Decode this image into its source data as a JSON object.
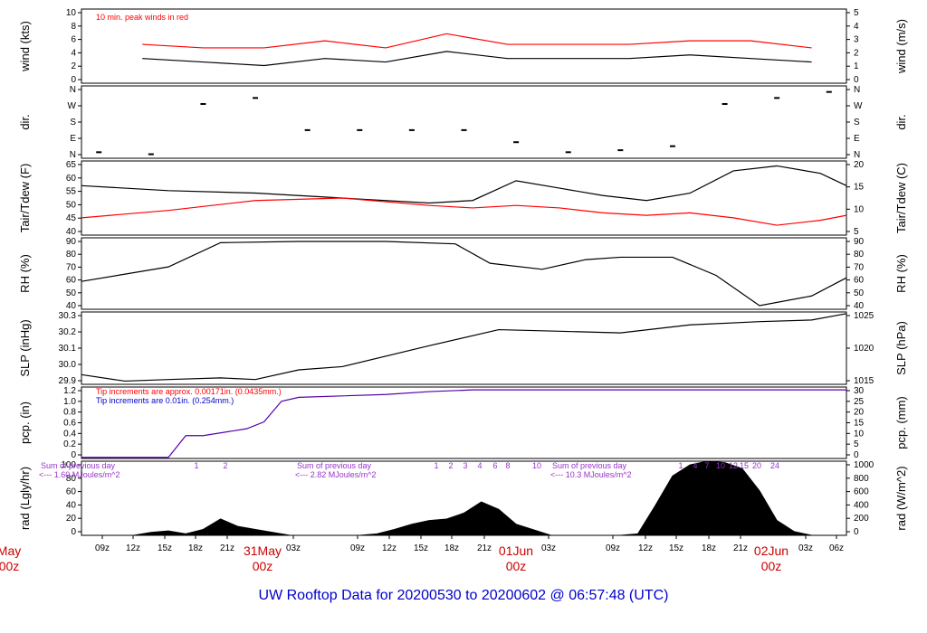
{
  "figure": {
    "title": "UW Rooftop Data for 20200530  to  20200602 @ 06:57:48  (UTC)"
  },
  "colors": {
    "line": "#000000",
    "accent": "#ff0000",
    "blue": "#0000cc",
    "purple": "#9933cc"
  },
  "chart_data": [
    {
      "id": "wind",
      "type": "line",
      "ylabel": "wind (kts)",
      "ylabel_right": "wind (m/s)",
      "ylim": [
        0,
        10.5
      ],
      "yticks": [
        "0",
        "2",
        "4",
        "6",
        "8",
        "10"
      ],
      "yticks_right": [
        "0",
        "1",
        "2",
        "3",
        "4",
        "5"
      ],
      "annotation": "10 min. peak winds in red",
      "series": [
        {
          "name": "wind",
          "color": "#000000",
          "x": [
            7,
            14,
            21,
            28,
            35,
            42,
            49,
            56,
            63,
            70,
            77,
            84
          ],
          "y": [
            3.5,
            3.0,
            2.5,
            3.5,
            3.0,
            4.5,
            3.5,
            3.5,
            3.5,
            4.0,
            3.5,
            3.0
          ]
        },
        {
          "name": "peak",
          "color": "#ff0000",
          "x": [
            7,
            14,
            21,
            28,
            35,
            42,
            49,
            56,
            63,
            70,
            77,
            84
          ],
          "y": [
            5.5,
            5.0,
            5.0,
            6.0,
            5.0,
            7.0,
            5.5,
            5.5,
            5.5,
            6.0,
            6.0,
            5.0
          ]
        }
      ]
    },
    {
      "id": "dir",
      "type": "scatter",
      "ylabel": "dir.",
      "ylabel_right": "dir.",
      "ylim": [
        0,
        360
      ],
      "yticks": [
        "N",
        "E",
        "S",
        "W",
        "N"
      ],
      "yticks_right": [
        "N",
        "E",
        "S",
        "W",
        "N"
      ],
      "series": [
        {
          "name": "dir",
          "color": "#000000",
          "x": [
            2,
            8,
            14,
            20,
            26,
            32,
            38,
            44,
            50,
            56,
            62,
            68,
            74,
            80,
            86
          ],
          "y": [
            30,
            20,
            270,
            300,
            140,
            140,
            140,
            140,
            80,
            30,
            40,
            60,
            270,
            300,
            330
          ]
        }
      ]
    },
    {
      "id": "temp",
      "type": "line",
      "ylabel": "Tair/Tdew (F)",
      "ylabel_right": "Tair/Tdew (C)",
      "ylim": [
        38,
        68
      ],
      "yticks": [
        "40",
        "45",
        "50",
        "55",
        "60",
        "65"
      ],
      "yticks_right": [
        "5",
        "10",
        "15",
        "20"
      ],
      "series": [
        {
          "name": "Tair",
          "color": "#000000",
          "x": [
            0,
            10,
            20,
            30,
            40,
            45,
            50,
            55,
            60,
            65,
            70,
            75,
            80,
            85,
            88
          ],
          "y": [
            58,
            56,
            55,
            53,
            51,
            52,
            60,
            57,
            54,
            52,
            55,
            64,
            66,
            63,
            58
          ]
        },
        {
          "name": "Tdew",
          "color": "#ff0000",
          "x": [
            0,
            10,
            20,
            30,
            40,
            45,
            50,
            55,
            60,
            65,
            70,
            75,
            80,
            85,
            88
          ],
          "y": [
            45,
            48,
            52,
            53,
            50,
            49,
            50,
            49,
            47,
            46,
            47,
            45,
            42,
            44,
            46
          ]
        }
      ]
    },
    {
      "id": "rh",
      "type": "line",
      "ylabel": "RH (%)",
      "ylabel_right": "RH (%)",
      "ylim": [
        37,
        96
      ],
      "yticks": [
        "40",
        "50",
        "60",
        "70",
        "80",
        "90"
      ],
      "yticks_right": [
        "40",
        "50",
        "60",
        "70",
        "80",
        "90"
      ],
      "series": [
        {
          "name": "RH",
          "color": "#000000",
          "x": [
            0,
            10,
            16,
            25,
            35,
            43,
            47,
            53,
            58,
            62,
            68,
            73,
            78,
            84,
            88
          ],
          "y": [
            60,
            72,
            92,
            93,
            93,
            91,
            75,
            70,
            78,
            80,
            80,
            65,
            40,
            48,
            63
          ]
        }
      ]
    },
    {
      "id": "slp",
      "type": "line",
      "ylabel": "SLP (inHg)",
      "ylabel_right": "SLP (hPa)",
      "ylim": [
        29.86,
        30.31
      ],
      "yticks": [
        "29.9",
        "30.0",
        "30.1",
        "30.2",
        "30.3"
      ],
      "yticks_right": [
        "1015",
        "1020",
        "1025"
      ],
      "series": [
        {
          "name": "SLP",
          "color": "#000000",
          "x": [
            0,
            5,
            10,
            16,
            20,
            25,
            30,
            40,
            48,
            55,
            62,
            70,
            78,
            84,
            88
          ],
          "y": [
            29.92,
            29.88,
            29.89,
            29.9,
            29.89,
            29.95,
            29.97,
            30.1,
            30.2,
            30.19,
            30.18,
            30.23,
            30.25,
            30.26,
            30.3
          ]
        }
      ]
    },
    {
      "id": "pcp",
      "type": "line",
      "ylabel": "pcp. (in)",
      "ylabel_right": "pcp. (mm)",
      "ylim": [
        -0.02,
        1.23
      ],
      "yticks": [
        "0",
        "0.2",
        "0.4",
        "0.6",
        "0.8",
        "1.0",
        "1.2"
      ],
      "yticks_right": [
        "0",
        "5",
        "10",
        "15",
        "20",
        "25",
        "30"
      ],
      "annotations": [
        {
          "text": "Tip increments are approx. 0.00171in. (0.0435mm.)",
          "color": "#ff0000"
        },
        {
          "text": "Tip increments are 0.01in. (0.254mm.)",
          "color": "#0000cc"
        }
      ],
      "series": [
        {
          "name": "pcp",
          "color": "#5500aa",
          "x": [
            0,
            10,
            12,
            14,
            19,
            21,
            23,
            25,
            35,
            40,
            45,
            88
          ],
          "y": [
            0,
            0,
            0.38,
            0.38,
            0.5,
            0.62,
            0.98,
            1.05,
            1.1,
            1.15,
            1.18,
            1.18
          ]
        }
      ]
    },
    {
      "id": "rad",
      "type": "area",
      "ylabel": "rad (Lgly/hr)",
      "ylabel_right": "rad (W/m^2)",
      "ylim": [
        0,
        100
      ],
      "yticks": [
        "0",
        "20",
        "40",
        "60",
        "80",
        "100"
      ],
      "yticks_right": [
        "0",
        "200",
        "400",
        "600",
        "800",
        "1000"
      ],
      "notes": [
        {
          "text": "Sum of previous day",
          "text2": "<--- 1.60 MJoules/m^2"
        },
        {
          "text": "Sum of previous day",
          "text2": "<--- 2.82 MJoules/m^2"
        },
        {
          "text": "Sum of previous day",
          "text2": "<--- 10.3 MJoules/m^2"
        }
      ],
      "event_labels": [
        "1",
        "2",
        "1",
        "2",
        "3",
        "4",
        "6",
        "8",
        "10",
        "1",
        "4",
        "7",
        "10",
        "12",
        "15",
        "20",
        "24"
      ],
      "series": [
        {
          "name": "rad",
          "color": "#000000",
          "x": [
            0,
            6,
            8,
            10,
            12,
            14,
            16,
            18,
            20,
            24,
            30,
            32,
            34,
            36,
            38,
            40,
            42,
            44,
            46,
            48,
            50,
            54,
            60,
            62,
            64,
            66,
            68,
            70,
            72,
            74,
            76,
            78,
            80,
            82,
            84,
            88
          ],
          "y": [
            0,
            0,
            4,
            6,
            2,
            8,
            22,
            12,
            8,
            0,
            0,
            0,
            2,
            8,
            15,
            20,
            22,
            30,
            45,
            35,
            15,
            0,
            0,
            0,
            2,
            40,
            80,
            95,
            100,
            98,
            90,
            60,
            20,
            5,
            0,
            0
          ]
        }
      ]
    }
  ],
  "xaxis": {
    "tick_labels": [
      "09z",
      "12z",
      "15z",
      "18z",
      "21z",
      "03z",
      "09z",
      "12z",
      "15z",
      "18z",
      "21z",
      "03z",
      "09z",
      "12z",
      "15z",
      "18z",
      "21z",
      "03z",
      "06z"
    ],
    "day_labels": [
      {
        "top": "May",
        "bottom": "00z"
      },
      {
        "top": "31May",
        "bottom": "00z"
      },
      {
        "top": "01Jun",
        "bottom": "00z"
      },
      {
        "top": "02Jun",
        "bottom": "00z"
      }
    ]
  }
}
